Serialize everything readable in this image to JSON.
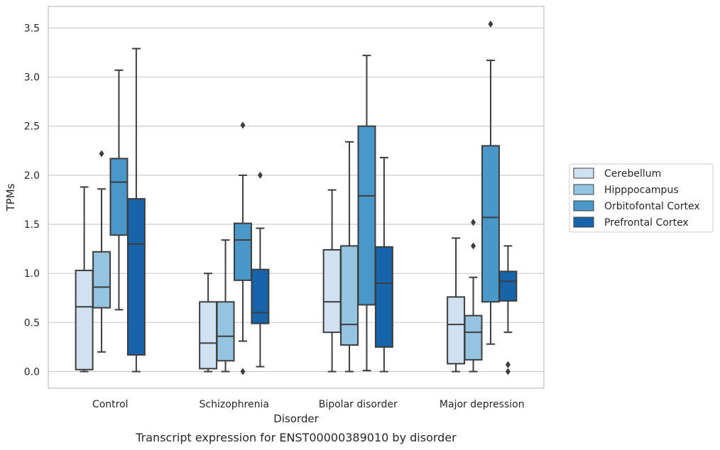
{
  "chart_data": {
    "type": "box",
    "title": "",
    "caption": "Transcript expression for ENST00000389010 by disorder",
    "xlabel": "Disorder",
    "ylabel": "TPMs",
    "ylim": [
      -0.17,
      3.72
    ],
    "yticks": [
      0.0,
      0.5,
      1.0,
      1.5,
      2.0,
      2.5,
      3.0,
      3.5
    ],
    "ytick_labels": [
      "0.0",
      "0.5",
      "1.0",
      "1.5",
      "2.0",
      "2.5",
      "3.0",
      "3.5"
    ],
    "grid": "horizontal",
    "legend_position": "right",
    "categories": [
      "Control",
      "Schizophrenia",
      "Bipolar disorder",
      "Major depression"
    ],
    "series": [
      {
        "name": "Cerebellum",
        "color": "#d0e1f2",
        "boxes": [
          {
            "whislo": 0.0,
            "q1": 0.02,
            "med": 0.66,
            "q3": 1.03,
            "whishi": 1.88,
            "fliers": []
          },
          {
            "whislo": 0.0,
            "q1": 0.03,
            "med": 0.29,
            "q3": 0.71,
            "whishi": 1.0,
            "fliers": []
          },
          {
            "whislo": 0.0,
            "q1": 0.4,
            "med": 0.71,
            "q3": 1.24,
            "whishi": 1.85,
            "fliers": []
          },
          {
            "whislo": 0.0,
            "q1": 0.08,
            "med": 0.48,
            "q3": 0.76,
            "whishi": 1.36,
            "fliers": []
          }
        ]
      },
      {
        "name": "Hipppocampus",
        "color": "#94c4df",
        "boxes": [
          {
            "whislo": 0.2,
            "q1": 0.65,
            "med": 0.86,
            "q3": 1.22,
            "whishi": 1.86,
            "fliers": [
              2.22
            ]
          },
          {
            "whislo": 0.0,
            "q1": 0.11,
            "med": 0.36,
            "q3": 0.71,
            "whishi": 1.34,
            "fliers": []
          },
          {
            "whislo": 0.0,
            "q1": 0.27,
            "med": 0.48,
            "q3": 1.28,
            "whishi": 2.34,
            "fliers": []
          },
          {
            "whislo": 0.0,
            "q1": 0.12,
            "med": 0.4,
            "q3": 0.57,
            "whishi": 0.96,
            "fliers": [
              1.28,
              1.52
            ]
          }
        ]
      },
      {
        "name": "Orbitofontal Cortex",
        "color": "#4a98c9",
        "boxes": [
          {
            "whislo": 0.63,
            "q1": 1.39,
            "med": 1.93,
            "q3": 2.17,
            "whishi": 3.07,
            "fliers": []
          },
          {
            "whislo": 0.31,
            "q1": 0.93,
            "med": 1.34,
            "q3": 1.51,
            "whishi": 2.0,
            "fliers": [
              2.51,
              0.0
            ]
          },
          {
            "whislo": 0.01,
            "q1": 0.68,
            "med": 1.79,
            "q3": 2.5,
            "whishi": 3.22,
            "fliers": []
          },
          {
            "whislo": 0.28,
            "q1": 0.71,
            "med": 1.57,
            "q3": 2.3,
            "whishi": 3.17,
            "fliers": [
              3.54
            ]
          }
        ]
      },
      {
        "name": "Prefrontal Cortex",
        "color": "#1764ab",
        "boxes": [
          {
            "whislo": 0.0,
            "q1": 0.17,
            "med": 1.3,
            "q3": 1.76,
            "whishi": 3.29,
            "fliers": []
          },
          {
            "whislo": 0.05,
            "q1": 0.49,
            "med": 0.6,
            "q3": 1.04,
            "whishi": 1.46,
            "fliers": [
              2.0
            ]
          },
          {
            "whislo": 0.0,
            "q1": 0.25,
            "med": 0.9,
            "q3": 1.27,
            "whishi": 2.18,
            "fliers": []
          },
          {
            "whislo": 0.4,
            "q1": 0.72,
            "med": 0.92,
            "q3": 1.02,
            "whishi": 1.28,
            "fliers": [
              0.07,
              0.0
            ]
          }
        ]
      }
    ]
  }
}
